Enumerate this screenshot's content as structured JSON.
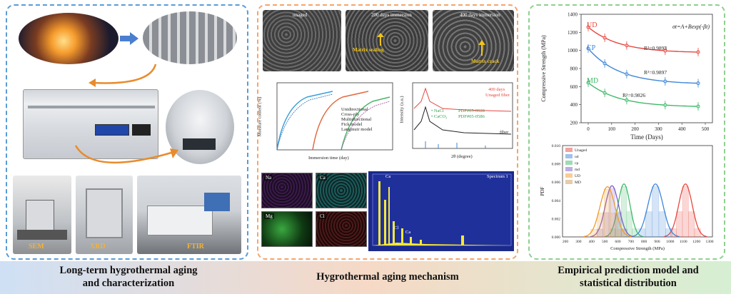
{
  "sections": {
    "left": {
      "caption_line1": "Long-term hygrothermal aging",
      "caption_line2": "and characterization"
    },
    "middle": {
      "caption": "Hygrothermal aging mechanism"
    },
    "right": {
      "caption_line1": "Empirical prediction model and",
      "caption_line2": "statistical distribution"
    }
  },
  "left_panel": {
    "instruments": [
      "SEM",
      "XRD",
      "FTIR"
    ]
  },
  "middle_panel": {
    "sem_tiles": [
      "unaged",
      "200 days immersion",
      "400 days immersion"
    ],
    "sem_annotations": [
      "Matrix sealing",
      "Matrix crack"
    ],
    "moisture_chart": {
      "ylabel": "Moisture content (%)",
      "xlabel": "Immersion time (day)",
      "xticks": [
        "0",
        "100",
        "200",
        "300",
        "400",
        "500",
        "600",
        "700",
        "800",
        "900"
      ],
      "yticks": [
        "0",
        "1",
        "2",
        "3",
        "4",
        "5"
      ],
      "legend": [
        "Unidirectional",
        "Cross-ply",
        "Multidirectional",
        "Fick model",
        "Langmuir model"
      ]
    },
    "xrd_chart": {
      "ylabel": "Intensity (a.u.)",
      "xlabel": "2θ (degree)",
      "legend": [
        "• NaCl",
        "• CaCO₃"
      ],
      "codes": [
        "PDF#05-0628",
        "PDF#05-0586"
      ],
      "tags": [
        "400 days",
        "Unaged fiber",
        "fiber"
      ]
    },
    "eds_maps": [
      "Na",
      "Ca",
      "Mg",
      "Cl"
    ],
    "eds_spectrum": {
      "title": "Spectrum 1",
      "peaks": [
        "Ca",
        "Cl",
        "Ca"
      ]
    }
  },
  "right_panel": {
    "strength_chart": {
      "ylabel": "Compressive Strength (MPa)",
      "xlabel": "Time (Days)",
      "equation": "σt=A+Bexp(-βt)",
      "yticks": [
        "200",
        "400",
        "600",
        "800",
        "1000",
        "1200",
        "1400"
      ],
      "xticks": [
        "0",
        "100",
        "200",
        "300",
        "400",
        "500"
      ],
      "series": [
        {
          "name": "UD",
          "r2": "R²=0.9893",
          "color": "#e8473f"
        },
        {
          "name": "CP",
          "r2": "R²=0.9897",
          "color": "#3e86d8"
        },
        {
          "name": "MD",
          "r2": "R²=0.9826",
          "color": "#3fb96a"
        }
      ]
    },
    "pdf_chart": {
      "ylabel": "PDF",
      "xlabel": "Compressive Strength (MPa)",
      "yticks": [
        "0.000",
        "0.002",
        "0.004",
        "0.006",
        "0.008",
        "0.010"
      ],
      "xticks": [
        "200",
        "300",
        "400",
        "500",
        "600",
        "700",
        "800",
        "900",
        "1000",
        "1100",
        "1200",
        "1300"
      ],
      "legend": [
        "Unaged",
        "ud",
        "cp",
        "md",
        "UD",
        "MD"
      ],
      "colors": [
        "#e8473f",
        "#3e86d8",
        "#3fb96a",
        "#7b5cc9",
        "#f39a2b",
        "#c99a5a"
      ]
    }
  }
}
